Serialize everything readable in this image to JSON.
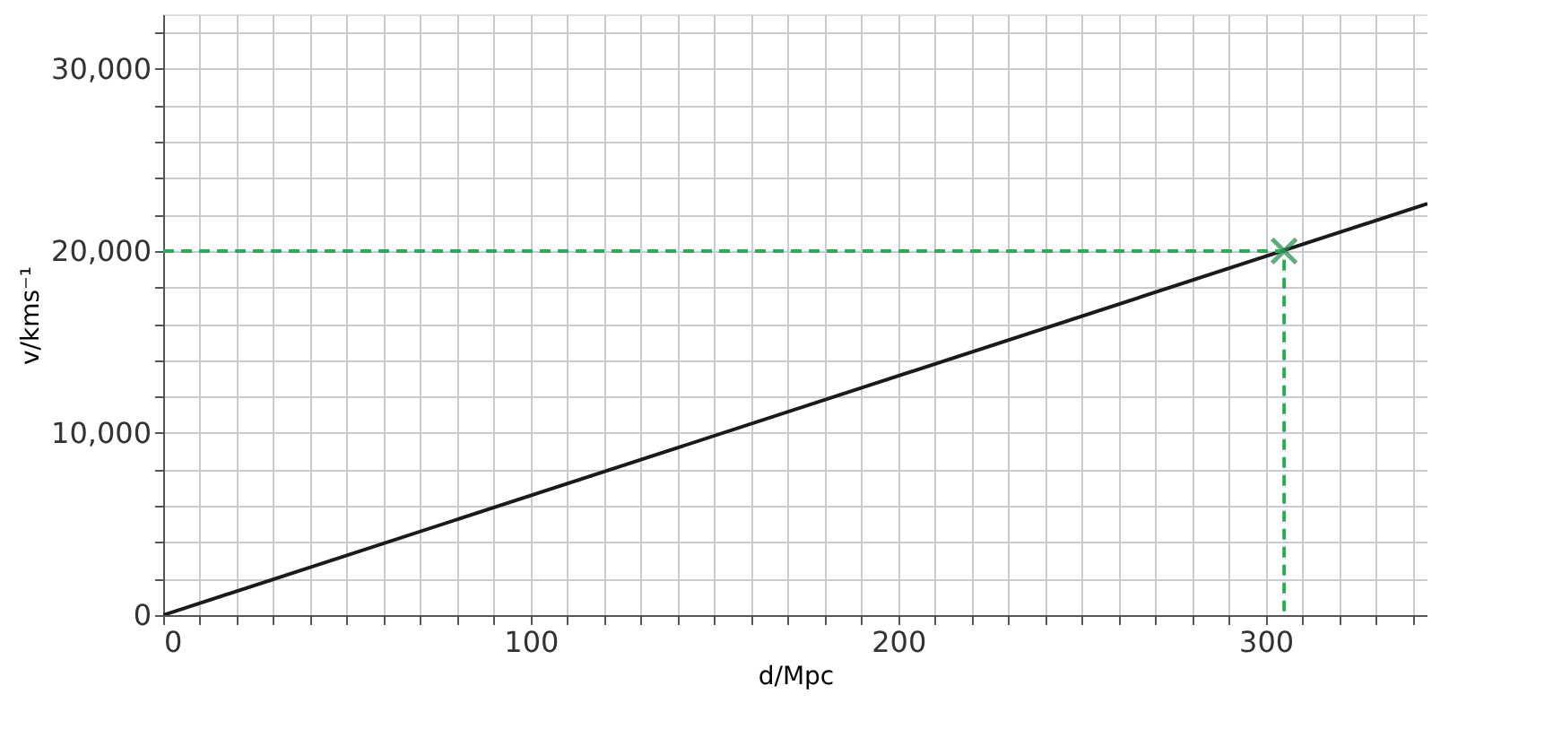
{
  "chart_data": {
    "type": "line",
    "xlabel": "d/Mpc",
    "ylabel": "v/kms⁻¹",
    "xlim": [
      0,
      344
    ],
    "ylim": [
      0,
      33000
    ],
    "xticks": [
      0,
      {
        "value": 10,
        "label": null
      },
      {
        "value": 20,
        "label": null
      },
      {
        "value": 30,
        "label": null
      },
      {
        "value": 40,
        "label": null
      },
      {
        "value": 50,
        "label": null
      },
      {
        "value": 60,
        "label": null
      },
      {
        "value": 70,
        "label": null
      },
      {
        "value": 80,
        "label": null
      },
      {
        "value": 90,
        "label": null
      },
      100,
      {
        "value": 110,
        "label": null
      },
      {
        "value": 120,
        "label": null
      },
      {
        "value": 130,
        "label": null
      },
      {
        "value": 140,
        "label": null
      },
      {
        "value": 150,
        "label": null
      },
      {
        "value": 160,
        "label": null
      },
      {
        "value": 170,
        "label": null
      },
      {
        "value": 180,
        "label": null
      },
      {
        "value": 190,
        "label": null
      },
      200,
      {
        "value": 210,
        "label": null
      },
      {
        "value": 220,
        "label": null
      },
      {
        "value": 230,
        "label": null
      },
      {
        "value": 240,
        "label": null
      },
      {
        "value": 250,
        "label": null
      },
      {
        "value": 260,
        "label": null
      },
      {
        "value": 270,
        "label": null
      },
      {
        "value": 280,
        "label": null
      },
      {
        "value": 290,
        "label": null
      },
      300,
      {
        "value": 310,
        "label": null
      },
      {
        "value": 320,
        "label": null
      },
      {
        "value": 330,
        "label": null
      },
      {
        "value": 340,
        "label": null
      }
    ],
    "yticks": [
      {
        "value": 0,
        "label": "0"
      },
      {
        "value": 2000,
        "label": null
      },
      {
        "value": 4000,
        "label": null
      },
      {
        "value": 6000,
        "label": null
      },
      {
        "value": 8000,
        "label": null
      },
      {
        "value": 10000,
        "label": "10,000"
      },
      {
        "value": 12000,
        "label": null
      },
      {
        "value": 14000,
        "label": null
      },
      {
        "value": 16000,
        "label": null
      },
      {
        "value": 18000,
        "label": null
      },
      {
        "value": 20000,
        "label": "20,000"
      },
      {
        "value": 22000,
        "label": null
      },
      {
        "value": 24000,
        "label": null
      },
      {
        "value": 26000,
        "label": null
      },
      {
        "value": 28000,
        "label": null
      },
      {
        "value": 30000,
        "label": "30,000"
      },
      {
        "value": 32000,
        "label": null
      }
    ],
    "grid": true,
    "series": [
      {
        "color": "#1a1a1a",
        "line_style": "solid",
        "x": [
          0,
          344
        ],
        "values": [
          0,
          22600
        ]
      },
      {
        "color": "#2eaa55",
        "line_style": "dashed",
        "x": [
          0,
          305,
          305
        ],
        "values": [
          20000,
          20000,
          0
        ]
      },
      {
        "type": "scatter",
        "color": "#1e8a45",
        "marker": "cross",
        "x": [
          305
        ],
        "values": [
          20000
        ]
      }
    ]
  }
}
